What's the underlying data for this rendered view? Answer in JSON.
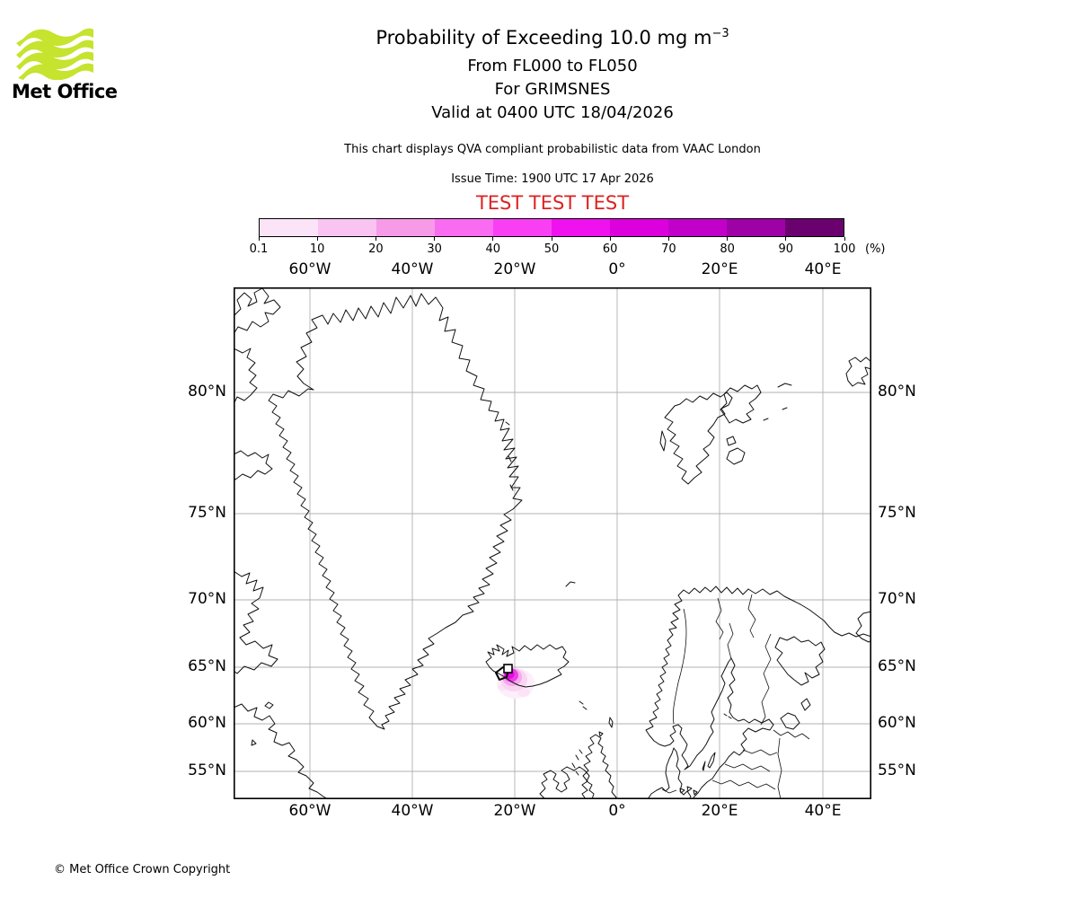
{
  "logo": {
    "brand": "Met Office"
  },
  "header": {
    "title": "Probability of Exceeding 10.0 mg m",
    "title_exponent": "−3",
    "subtitle_flight_levels": "From FL000 to FL050",
    "subtitle_volcano": "For GRIMSNES",
    "subtitle_valid": "Valid at 0400 UTC 18/04/2026",
    "disclaimer": "This chart displays QVA compliant probabilistic data from VAAC London",
    "issue_time": "Issue Time: 1900 UTC 17 Apr 2026",
    "test_banner": "TEST TEST TEST",
    "test_banner_color": "#dd2222"
  },
  "colorbar": {
    "tick_labels": [
      "0.1",
      "10",
      "20",
      "30",
      "40",
      "50",
      "60",
      "70",
      "80",
      "90",
      "100"
    ],
    "unit_label": "(%)",
    "segment_colors": [
      "#fbe4f8",
      "#f9c4f1",
      "#f79be9",
      "#f96cf1",
      "#f93ff3",
      "#ef12ef",
      "#dc00dc",
      "#c101c9",
      "#9e01a6",
      "#6b016e"
    ]
  },
  "map": {
    "lon_labels": [
      "60°W",
      "40°W",
      "20°W",
      "0°",
      "20°E",
      "40°E"
    ],
    "lat_labels": [
      "80°N",
      "75°N",
      "70°N",
      "65°N",
      "60°N",
      "55°N"
    ]
  },
  "footer": {
    "copyright": "© Met Office Crown Copyright"
  }
}
